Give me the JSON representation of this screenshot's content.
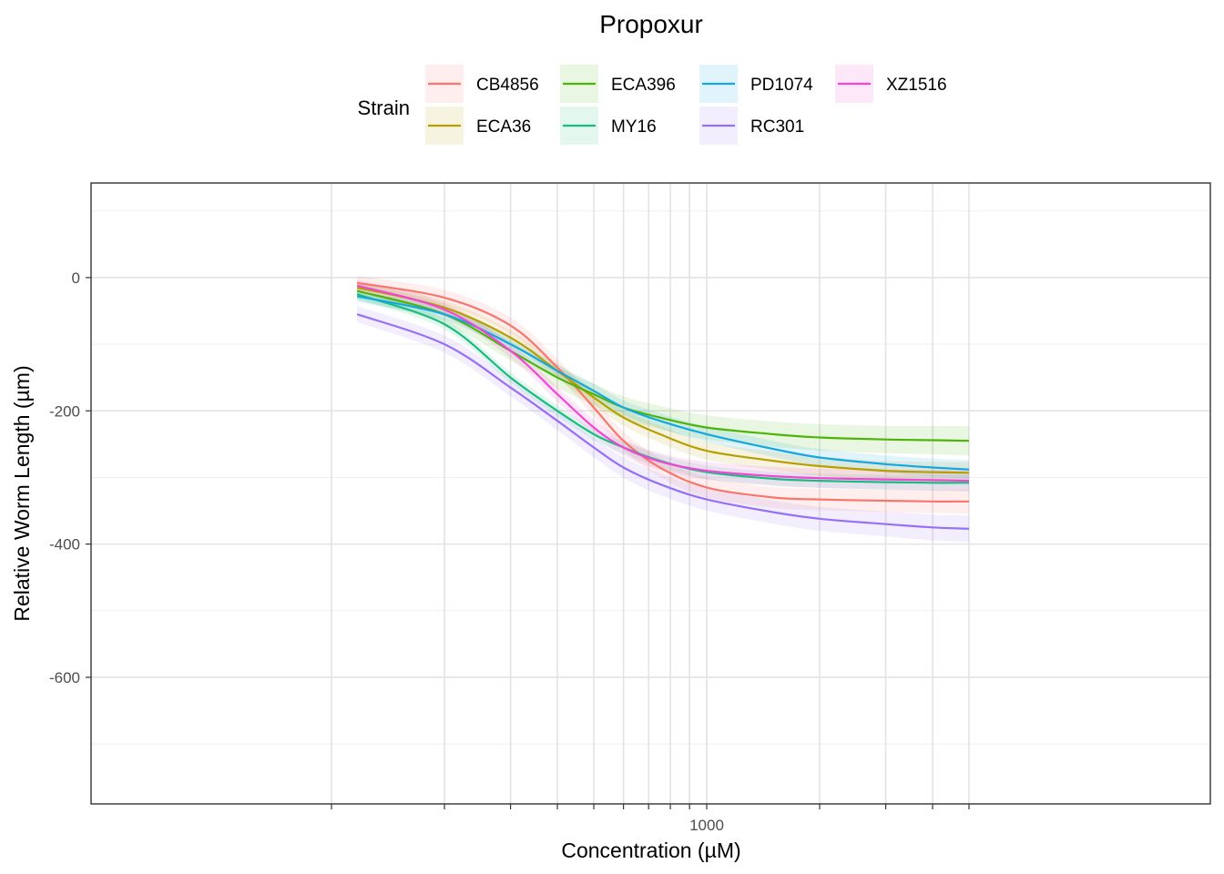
{
  "chart_data": {
    "type": "line",
    "title": "Propoxur",
    "xlabel": "Concentration (µM)",
    "ylabel": "Relative Worm Length (µm)",
    "x_scale": "log10",
    "x_tick_labels": [
      {
        "value": 1000,
        "label": "1000"
      }
    ],
    "y_ticks": [
      {
        "value": 0,
        "label": "0"
      },
      {
        "value": -200,
        "label": "-200"
      },
      {
        "value": -400,
        "label": "-400"
      },
      {
        "value": -600,
        "label": "-600"
      }
    ],
    "ylim": [
      -790,
      142
    ],
    "grid": true,
    "legend": {
      "title": "Strain",
      "position": "top",
      "entries": [
        "CB4856",
        "ECA36",
        "ECA396",
        "MY16",
        "PD1074",
        "RC301",
        "XZ1516"
      ]
    },
    "x": [
      117,
      200,
      300,
      400,
      500,
      600,
      750,
      1000,
      1500,
      2000,
      3000,
      4000,
      5000
    ],
    "series": [
      {
        "name": "CB4856",
        "color": "#F8766D",
        "values": [
          -8,
          -30,
          -72,
          -135,
          -195,
          -245,
          -285,
          -315,
          -330,
          -333,
          -335,
          -336,
          -336
        ],
        "ci": 18
      },
      {
        "name": "ECA36",
        "color": "#B79F00",
        "values": [
          -15,
          -45,
          -90,
          -140,
          -180,
          -210,
          -235,
          -260,
          -275,
          -283,
          -290,
          -292,
          -293
        ],
        "ci": 16
      },
      {
        "name": "ECA396",
        "color": "#4DB50A",
        "values": [
          -20,
          -55,
          -110,
          -150,
          -175,
          -195,
          -210,
          -225,
          -235,
          -240,
          -243,
          -244,
          -245
        ],
        "ci": 22
      },
      {
        "name": "MY16",
        "color": "#19BC7F",
        "values": [
          -25,
          -70,
          -150,
          -200,
          -235,
          -255,
          -275,
          -292,
          -302,
          -305,
          -307,
          -308,
          -308
        ],
        "ci": 12
      },
      {
        "name": "PD1074",
        "color": "#14A8E0",
        "values": [
          -28,
          -55,
          -100,
          -140,
          -170,
          -195,
          -215,
          -235,
          -257,
          -270,
          -280,
          -285,
          -288
        ],
        "ci": 14
      },
      {
        "name": "RC301",
        "color": "#9670F7",
        "values": [
          -55,
          -100,
          -165,
          -215,
          -255,
          -285,
          -310,
          -333,
          -352,
          -362,
          -370,
          -375,
          -377
        ],
        "ci": 20
      },
      {
        "name": "XZ1516",
        "color": "#F245D6",
        "values": [
          -12,
          -48,
          -110,
          -175,
          -225,
          -255,
          -276,
          -290,
          -298,
          -301,
          -303,
          -304,
          -305
        ],
        "ci": 16
      }
    ]
  }
}
